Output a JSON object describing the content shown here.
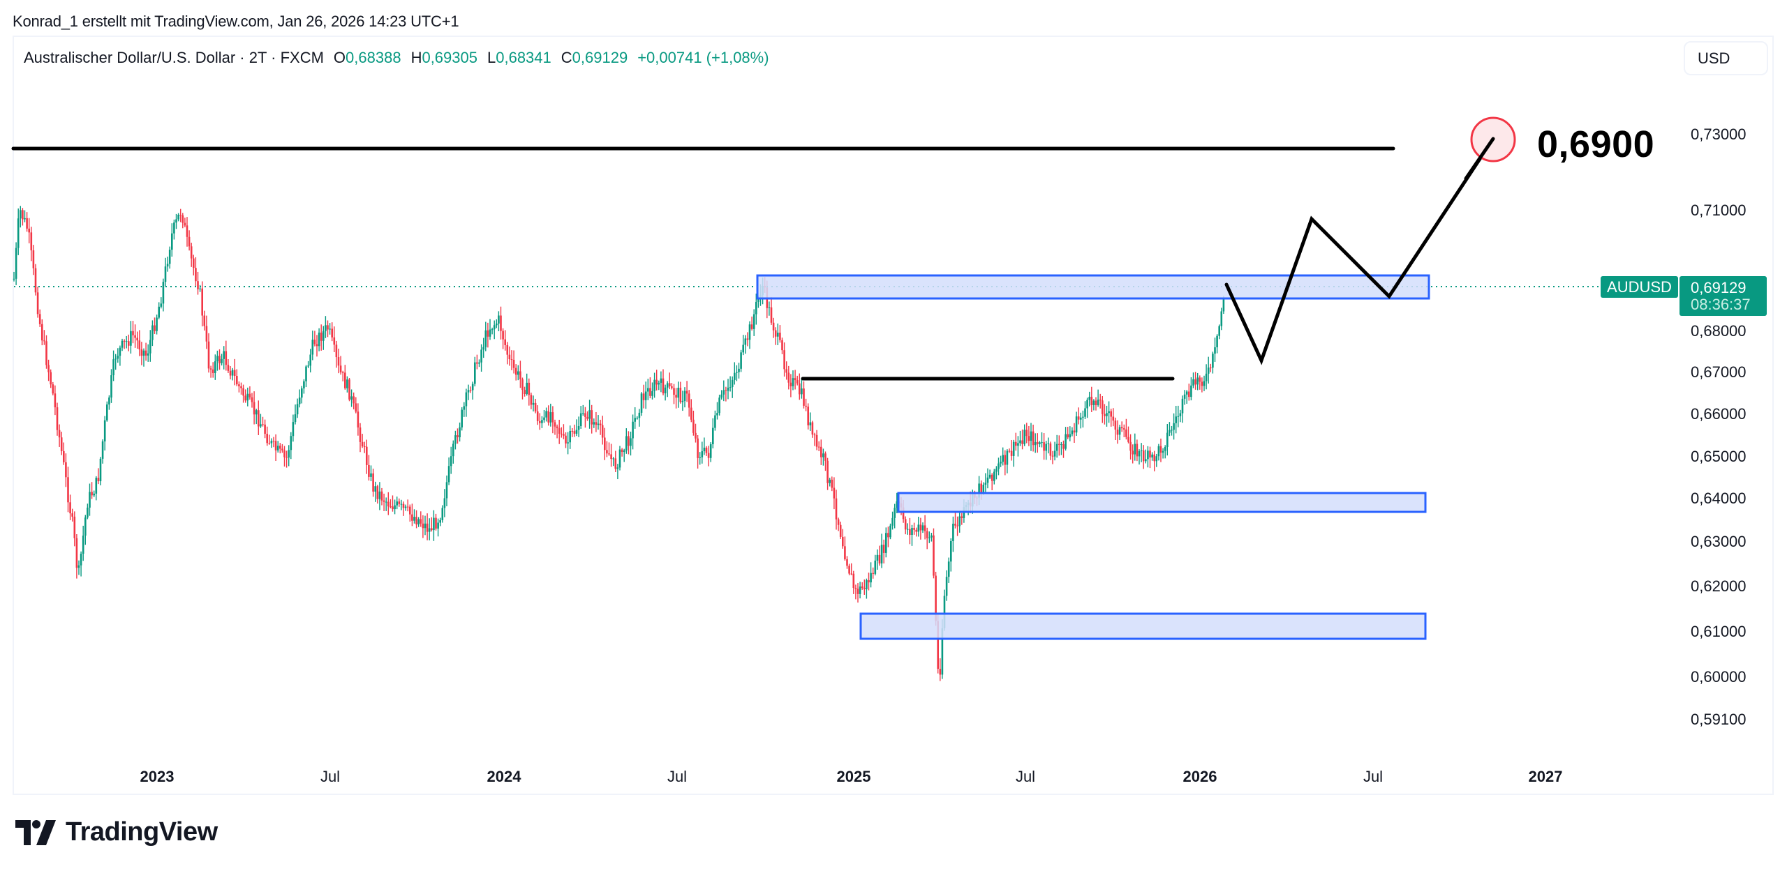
{
  "header": {
    "credit": "Konrad_1 erstellt mit TradingView.com, Jan 26, 2026 14:23 UTC+1"
  },
  "legend": {
    "symbol_desc": "Australischer Dollar/U.S. Dollar · 2T · FXCM",
    "open_label": "O",
    "open": "0,68388",
    "high_label": "H",
    "high": "0,69305",
    "low_label": "L",
    "low": "0,68341",
    "close_label": "C",
    "close": "0,69129",
    "change": "+0,00741 (+1,08%)"
  },
  "currency_button": "USD",
  "price_tag": {
    "symbol": "AUDUSD",
    "price": "0,69129",
    "countdown": "08:36:37",
    "color": "#089981"
  },
  "annotation": {
    "target_text": "0,6900",
    "circle_stroke": "#f23645",
    "circle_fill": "#fde8ea"
  },
  "logo": {
    "text": "TradingView"
  },
  "colors": {
    "up": "#089981",
    "down": "#f23645",
    "zone_fill": "#d4defc",
    "zone_stroke": "#2962ff",
    "line": "#000000"
  },
  "chart_data": {
    "type": "candlestick",
    "title": "Australischer Dollar/U.S. Dollar · 2T · FXCM",
    "symbol": "AUDUSD",
    "timeframe": "2T",
    "xlabel": "",
    "ylabel": "USD",
    "y_scale": "log",
    "ylim": [
      0.585,
      0.745
    ],
    "y_ticks": [
      "0,73000",
      "0,71000",
      "0,68000",
      "0,67000",
      "0,66000",
      "0,65000",
      "0,64000",
      "0,63000",
      "0,62000",
      "0,61000",
      "0,60000",
      "0,59100"
    ],
    "x_ticks": [
      "2023",
      "Jul",
      "2024",
      "Jul",
      "2025",
      "Jul",
      "2026",
      "Jul",
      "2027"
    ],
    "last_ohlc": {
      "open": 0.68388,
      "high": 0.69305,
      "low": 0.68341,
      "close": 0.69129,
      "change": 0.00741,
      "change_pct": 1.08
    },
    "approx_price_path": [
      {
        "date": "2022-09",
        "price": 0.68
      },
      {
        "date": "2022-10",
        "price": 0.715
      },
      {
        "date": "2022-11",
        "price": 0.665
      },
      {
        "date": "2022-12",
        "price": 0.625
      },
      {
        "date": "2023-02",
        "price": 0.68
      },
      {
        "date": "2023-03",
        "price": 0.716
      },
      {
        "date": "2023-05",
        "price": 0.67
      },
      {
        "date": "2023-07",
        "price": 0.69
      },
      {
        "date": "2023-09",
        "price": 0.64
      },
      {
        "date": "2023-10",
        "price": 0.632
      },
      {
        "date": "2024-01",
        "price": 0.69
      },
      {
        "date": "2024-03",
        "price": 0.65
      },
      {
        "date": "2024-05",
        "price": 0.67
      },
      {
        "date": "2024-07",
        "price": 0.68
      },
      {
        "date": "2024-08",
        "price": 0.65
      },
      {
        "date": "2024-10",
        "price": 0.694
      },
      {
        "date": "2024-12",
        "price": 0.625
      },
      {
        "date": "2025-02",
        "price": 0.635
      },
      {
        "date": "2025-04",
        "price": 0.592
      },
      {
        "date": "2025-05",
        "price": 0.645
      },
      {
        "date": "2025-07",
        "price": 0.655
      },
      {
        "date": "2025-09",
        "price": 0.668
      },
      {
        "date": "2025-11",
        "price": 0.645
      },
      {
        "date": "2026-01",
        "price": 0.691
      }
    ],
    "horizontal_lines": [
      {
        "price": 0.7255,
        "from": "2022-09",
        "to": "2026-09"
      },
      {
        "price": 0.6685,
        "from": "2024-11",
        "to": "2025-12"
      }
    ],
    "zones": [
      {
        "top": 0.693,
        "bottom": 0.6865,
        "from": "2024-10",
        "to": "2026-09"
      },
      {
        "top": 0.641,
        "bottom": 0.637,
        "from": "2025-03",
        "to": "2026-09"
      },
      {
        "top": 0.6145,
        "bottom": 0.609,
        "from": "2025-01",
        "to": "2026-09"
      }
    ],
    "projection_path": [
      {
        "date": "2026-02",
        "price": 0.691
      },
      {
        "date": "2026-04",
        "price": 0.673
      },
      {
        "date": "2026-05",
        "price": 0.709
      },
      {
        "date": "2026-07",
        "price": 0.6885
      },
      {
        "date": "2026-11",
        "price": 0.7285
      }
    ],
    "target_label": "0,6900",
    "current_price": 0.69129
  }
}
